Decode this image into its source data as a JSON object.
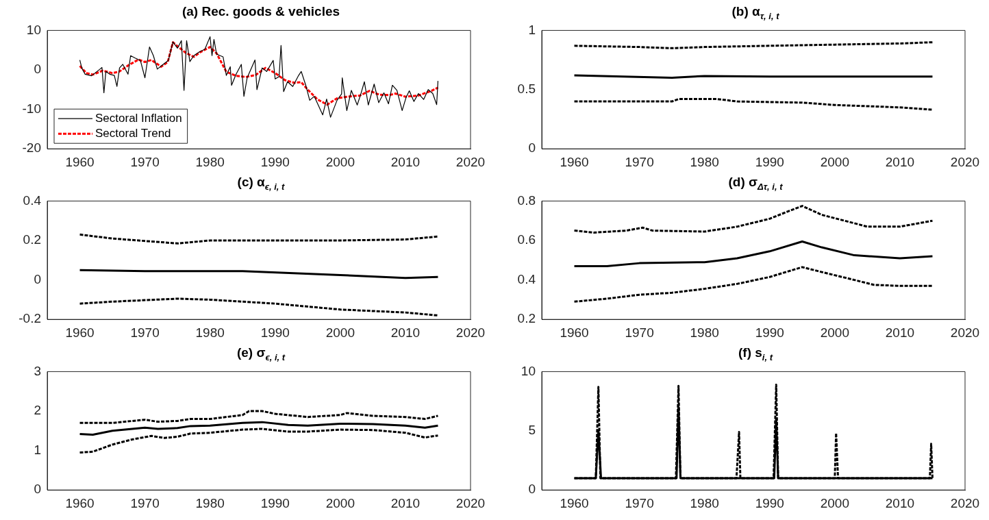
{
  "chart_data": [
    {
      "type": "line",
      "title": "(a) Rec. goods & vehicles",
      "xlim": [
        1955,
        2020
      ],
      "xticks": [
        1960,
        1970,
        1980,
        1990,
        2000,
        2010,
        2020
      ],
      "ylim": [
        -20,
        10
      ],
      "yticks": [
        -20,
        -10,
        0,
        10
      ],
      "legend": "bottom left",
      "series": [
        {
          "name": "Sectoral Inflation",
          "color": "#000000",
          "line_style": "solid",
          "x": [
            1960,
            1960.3,
            1960.8,
            1961.8,
            1963.1,
            1963.4,
            1963.7,
            1964,
            1964.6,
            1965.3,
            1965.7,
            1966.1,
            1966.6,
            1967.4,
            1967.8,
            1968.5,
            1969.3,
            1970,
            1970.7,
            1971.3,
            1971.9,
            1972.8,
            1973.6,
            1974.3,
            1975,
            1975.6,
            1976,
            1976.4,
            1976.9,
            1977.5,
            1978.4,
            1979.2,
            1980,
            1980.3,
            1980.6,
            1981,
            1982,
            1982.5,
            1983.1,
            1983.3,
            1984,
            1984.8,
            1985.2,
            1985.7,
            1986.9,
            1987.2,
            1988,
            1988.7,
            1989.7,
            1990,
            1990.6,
            1990.9,
            1991.3,
            1991.9,
            1992.7,
            1993.6,
            1994,
            1994.7,
            1995.3,
            1996,
            1996.8,
            1997.3,
            1997.9,
            1998.5,
            1999.5,
            2000.2,
            2000.3,
            2001,
            2001.7,
            2002.6,
            2003.1,
            2003.7,
            2004.3,
            2005.2,
            2005.9,
            2006.7,
            2007.4,
            2008,
            2008.7,
            2009.5,
            2010.1,
            2010.6,
            2011.3,
            2012,
            2012.8,
            2013.5,
            2014.2,
            2014.8,
            2015
          ],
          "values": [
            2.5,
            0.5,
            -1.1,
            -1.5,
            0.2,
            0.6,
            -5.8,
            -0.4,
            -1.1,
            -1.4,
            -4.2,
            0.5,
            1.4,
            -1.1,
            3.6,
            3.0,
            2.4,
            -2.0,
            5.8,
            3.6,
            0.2,
            1.4,
            2.4,
            7.1,
            5.5,
            7.4,
            -5.2,
            7.4,
            2.1,
            3.6,
            4.6,
            5.2,
            8.4,
            3.6,
            7.7,
            4.0,
            3.3,
            -1.4,
            0.8,
            -3.9,
            -1.1,
            1.4,
            -6.7,
            -2.0,
            2.5,
            -5.0,
            0.5,
            -0.4,
            2.4,
            -2.3,
            -1.7,
            6.2,
            -5.5,
            -3.0,
            -4.2,
            -1.4,
            -0.4,
            -3.9,
            -7.7,
            -6.7,
            -9.6,
            -11.4,
            -7.4,
            -12.0,
            -7.7,
            -6.1,
            -2.0,
            -10.3,
            -5.2,
            -8.9,
            -6.4,
            -3.0,
            -8.9,
            -3.6,
            -8.3,
            -5.8,
            -8.6,
            -3.9,
            -5.2,
            -10.3,
            -7.0,
            -5.3,
            -8,
            -6,
            -7.5,
            -5,
            -6,
            -8.8,
            -2.8
          ]
        },
        {
          "name": "Sectoral Trend",
          "color": "#ff0000",
          "line_style": "dashed",
          "x": [
            1960,
            1961,
            1962,
            1963.5,
            1965,
            1966,
            1967.5,
            1969,
            1970,
            1971,
            1972.5,
            1973.5,
            1974.3,
            1975,
            1976.3,
            1977.5,
            1978.5,
            1980,
            1981,
            1982.5,
            1984,
            1985.5,
            1987,
            1988.5,
            1990,
            1991.5,
            1993,
            1994,
            1995,
            1996.5,
            1998,
            1999.5,
            2001,
            2003,
            2004.5,
            2006,
            2007.5,
            2008.5,
            2010,
            2012,
            2014,
            2015
          ],
          "values": [
            1,
            -0.8,
            -1.2,
            -0.2,
            -0.8,
            -0.5,
            1.2,
            2.6,
            2.0,
            2.5,
            0.8,
            2,
            7,
            6,
            4.3,
            3.3,
            4.5,
            5.8,
            4.2,
            -0.5,
            -1.5,
            -1.8,
            -1.3,
            0.5,
            -0.8,
            -2.6,
            -3.3,
            -3.1,
            -5,
            -7.5,
            -8.8,
            -7.2,
            -6.8,
            -6.5,
            -5.3,
            -6.3,
            -6.4,
            -6,
            -6.8,
            -6.5,
            -5.3,
            -4.5
          ]
        }
      ]
    },
    {
      "type": "line",
      "title": "(b) α$_{τ, i, t}$",
      "xlim": [
        1955,
        2020
      ],
      "xticks": [
        1960,
        1970,
        1980,
        1990,
        2000,
        2010,
        2020
      ],
      "ylim": [
        0,
        1
      ],
      "yticks": [
        0,
        0.5,
        1
      ],
      "series": [
        {
          "color": "#000000",
          "line_style": "dashed",
          "x": [
            1960,
            1970,
            1975,
            1980,
            1990,
            2000,
            2010,
            2015
          ],
          "values": [
            0.87,
            0.86,
            0.85,
            0.86,
            0.87,
            0.88,
            0.89,
            0.9
          ]
        },
        {
          "color": "#000000",
          "line_style": "solid",
          "x": [
            1960,
            1975,
            1980,
            1990,
            2000,
            2015
          ],
          "values": [
            0.62,
            0.6,
            0.615,
            0.61,
            0.61,
            0.61
          ]
        },
        {
          "color": "#000000",
          "line_style": "dashed",
          "x": [
            1960,
            1970,
            1975,
            1976,
            1982,
            1985,
            1995,
            2000,
            2010,
            2015
          ],
          "values": [
            0.4,
            0.4,
            0.4,
            0.42,
            0.42,
            0.4,
            0.39,
            0.37,
            0.35,
            0.33
          ]
        }
      ]
    },
    {
      "type": "line",
      "title": "(c) α$_{ϵ, i, t}$",
      "xlim": [
        1955,
        2020
      ],
      "xticks": [
        1960,
        1970,
        1980,
        1990,
        2000,
        2010,
        2020
      ],
      "ylim": [
        -0.2,
        0.4
      ],
      "yticks": [
        -0.2,
        0,
        0.2,
        0.4
      ],
      "series": [
        {
          "color": "#000000",
          "line_style": "dashed",
          "x": [
            1960,
            1965,
            1975,
            1980,
            1990,
            2000,
            2010,
            2015
          ],
          "values": [
            0.23,
            0.21,
            0.185,
            0.2,
            0.2,
            0.2,
            0.205,
            0.22
          ]
        },
        {
          "color": "#000000",
          "line_style": "solid",
          "x": [
            1960,
            1970,
            1985,
            2000,
            2010,
            2015
          ],
          "values": [
            0.05,
            0.045,
            0.045,
            0.025,
            0.01,
            0.015
          ]
        },
        {
          "color": "#000000",
          "line_style": "dashed",
          "x": [
            1960,
            1965,
            1975,
            1980,
            1990,
            2000,
            2010,
            2015
          ],
          "values": [
            -0.12,
            -0.11,
            -0.095,
            -0.1,
            -0.12,
            -0.15,
            -0.165,
            -0.18
          ]
        }
      ]
    },
    {
      "type": "line",
      "title": "(d) σ$_{Δτ, i, t}$",
      "xlim": [
        1955,
        2020
      ],
      "xticks": [
        1960,
        1970,
        1980,
        1990,
        2000,
        2010,
        2020
      ],
      "ylim": [
        0.2,
        0.8
      ],
      "yticks": [
        0.2,
        0.4,
        0.6,
        0.8
      ],
      "series": [
        {
          "color": "#000000",
          "line_style": "dashed",
          "x": [
            1960,
            1963,
            1968,
            1970.5,
            1972,
            1980,
            1985,
            1990,
            1993,
            1995,
            1998,
            2005,
            2010,
            2015
          ],
          "values": [
            0.65,
            0.64,
            0.65,
            0.665,
            0.65,
            0.645,
            0.67,
            0.71,
            0.75,
            0.775,
            0.73,
            0.67,
            0.67,
            0.7
          ]
        },
        {
          "color": "#000000",
          "line_style": "solid",
          "x": [
            1960,
            1965,
            1970,
            1980,
            1985,
            1990,
            1995,
            1998,
            2003,
            2010,
            2015
          ],
          "values": [
            0.47,
            0.47,
            0.485,
            0.49,
            0.51,
            0.545,
            0.595,
            0.565,
            0.525,
            0.51,
            0.52
          ]
        },
        {
          "color": "#000000",
          "line_style": "dashed",
          "x": [
            1960,
            1965,
            1970,
            1975,
            1980,
            1985,
            1990,
            1995,
            1998,
            2003,
            2006,
            2010,
            2015
          ],
          "values": [
            0.29,
            0.305,
            0.325,
            0.335,
            0.355,
            0.38,
            0.415,
            0.465,
            0.44,
            0.4,
            0.375,
            0.37,
            0.37
          ]
        }
      ]
    },
    {
      "type": "line",
      "title": "(e) σ$_{ϵ, i, t}$",
      "xlim": [
        1955,
        2020
      ],
      "xticks": [
        1960,
        1970,
        1980,
        1990,
        2000,
        2010,
        2020
      ],
      "ylim": [
        0,
        3
      ],
      "yticks": [
        0,
        1,
        2,
        3
      ],
      "series": [
        {
          "color": "#000000",
          "line_style": "dashed",
          "x": [
            1960,
            1965,
            1970,
            1972,
            1975,
            1977,
            1980,
            1985,
            1986,
            1988,
            1990,
            1995,
            2000,
            2001,
            2005,
            2010,
            2013,
            2015
          ],
          "values": [
            1.7,
            1.7,
            1.78,
            1.73,
            1.75,
            1.8,
            1.8,
            1.9,
            2.0,
            2.0,
            1.93,
            1.85,
            1.9,
            1.95,
            1.88,
            1.85,
            1.8,
            1.88
          ]
        },
        {
          "color": "#000000",
          "line_style": "solid",
          "x": [
            1960,
            1962,
            1965,
            1970,
            1972,
            1975,
            1977,
            1980,
            1985,
            1988,
            1992,
            1995,
            2000,
            2005,
            2010,
            2013,
            2015
          ],
          "values": [
            1.42,
            1.4,
            1.5,
            1.58,
            1.55,
            1.57,
            1.62,
            1.63,
            1.7,
            1.72,
            1.65,
            1.63,
            1.68,
            1.67,
            1.63,
            1.58,
            1.63
          ]
        },
        {
          "color": "#000000",
          "line_style": "dashed",
          "x": [
            1960,
            1962,
            1965,
            1968,
            1971,
            1973,
            1975,
            1977,
            1980,
            1985,
            1988,
            1992,
            1995,
            2000,
            2005,
            2010,
            2013,
            2015
          ],
          "values": [
            0.95,
            0.97,
            1.15,
            1.28,
            1.37,
            1.32,
            1.35,
            1.43,
            1.45,
            1.53,
            1.55,
            1.48,
            1.48,
            1.53,
            1.52,
            1.45,
            1.33,
            1.38
          ]
        }
      ]
    },
    {
      "type": "line",
      "title": "(f) s$_{i, t}$",
      "xlim": [
        1955,
        2020
      ],
      "xticks": [
        1960,
        1970,
        1980,
        1990,
        2000,
        2010,
        2020
      ],
      "ylim": [
        0,
        10
      ],
      "yticks": [
        0,
        5,
        10
      ],
      "series": [
        {
          "color": "#000000",
          "line_style": "dashed",
          "x": [
            1960,
            1963.3,
            1963.7,
            1964,
            1975.6,
            1976,
            1976.3,
            1984.9,
            1985.3,
            1985.5,
            1990.6,
            1991,
            1991.3,
            2000,
            2000.2,
            2000.5,
            2014.6,
            2014.8,
            2015
          ],
          "values": [
            1,
            1,
            8.7,
            1,
            1,
            8.8,
            1,
            1,
            4.9,
            1,
            1,
            8.9,
            1,
            1,
            4.8,
            1,
            1,
            3.9,
            1
          ]
        },
        {
          "color": "#000000",
          "line_style": "solid",
          "x": [
            1960,
            1963.3,
            1963.7,
            1964.1,
            1975.7,
            1976,
            1976.3,
            1990.7,
            1991,
            1991.3,
            2015
          ],
          "values": [
            1,
            1,
            5,
            1,
            1,
            7,
            1,
            1,
            6,
            1,
            1
          ]
        }
      ]
    }
  ]
}
